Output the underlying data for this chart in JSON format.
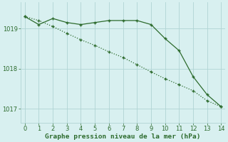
{
  "line1_x": [
    0,
    1,
    2,
    3,
    4,
    5,
    6,
    7,
    8,
    9,
    10,
    11,
    12,
    13,
    14
  ],
  "line1_y": [
    1019.3,
    1019.1,
    1019.25,
    1019.15,
    1019.1,
    1019.15,
    1019.2,
    1019.2,
    1019.2,
    1019.1,
    1018.75,
    1018.45,
    1017.8,
    1017.35,
    1017.05
  ],
  "line2_x": [
    0,
    1,
    2,
    3,
    4,
    5,
    6,
    7,
    8,
    9,
    10,
    11,
    12,
    13,
    14
  ],
  "line2_y": [
    1019.3,
    1019.2,
    1019.05,
    1018.88,
    1018.72,
    1018.58,
    1018.42,
    1018.28,
    1018.1,
    1017.92,
    1017.75,
    1017.6,
    1017.45,
    1017.2,
    1017.05
  ],
  "line_color": "#2d6b2d",
  "bg_color": "#d8f0f0",
  "grid_color": "#b0d4d4",
  "xlabel": "Graphe pression niveau de la mer (hPa)",
  "xlim": [
    -0.3,
    14.3
  ],
  "ylim": [
    1016.65,
    1019.65
  ],
  "yticks": [
    1017,
    1018,
    1019
  ],
  "xticks": [
    0,
    1,
    2,
    3,
    4,
    5,
    6,
    7,
    8,
    9,
    10,
    11,
    12,
    13,
    14
  ],
  "xlabel_fontsize": 6.8,
  "tick_fontsize": 6.0,
  "line1_lw": 0.9,
  "line2_lw": 0.9,
  "marker_size": 3.0
}
